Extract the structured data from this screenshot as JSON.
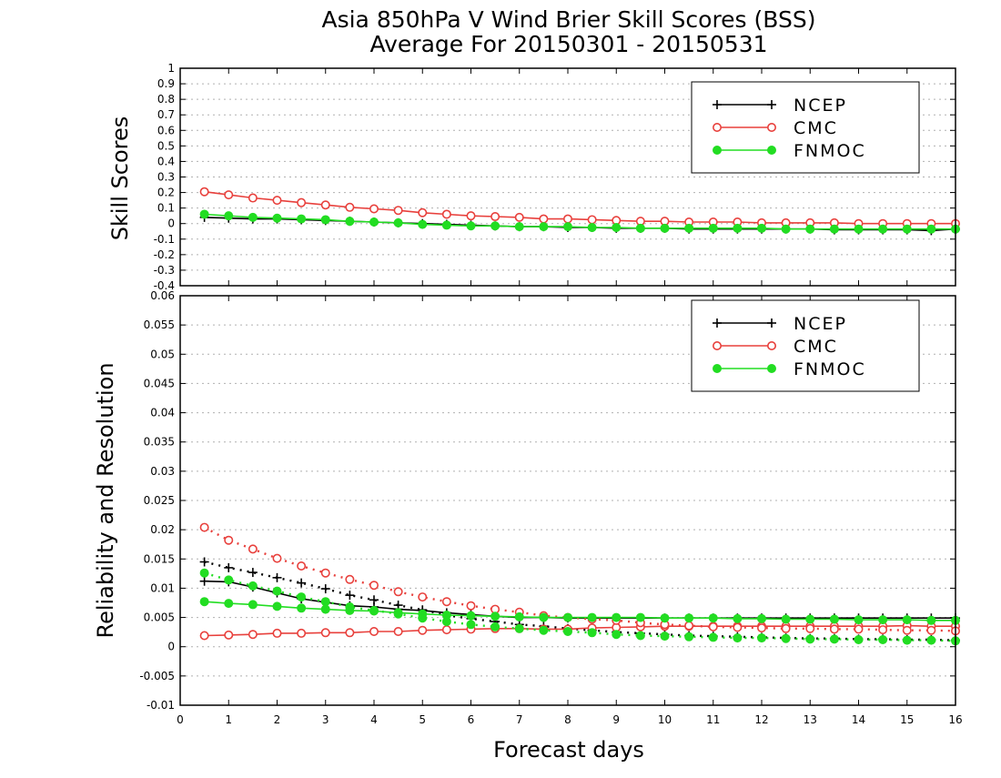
{
  "title": {
    "line1": "Asia 850hPa V Wind Brier Skill Scores (BSS)",
    "line2": "Average For 20150301 - 20150531"
  },
  "colors": {
    "NCEP": "#000000",
    "CMC": "#e8403c",
    "FNMOC": "#22dd22",
    "grid": "#b0b0b0"
  },
  "chart_data": [
    {
      "type": "line",
      "ylabel": "Skill Scores",
      "xlabel": "",
      "xlim": [
        0,
        16
      ],
      "ylim": [
        -0.4,
        1.0
      ],
      "yticks": [
        -0.4,
        -0.3,
        -0.2,
        -0.1,
        0,
        0.1,
        0.2,
        0.3,
        0.4,
        0.5,
        0.6,
        0.7,
        0.8,
        0.9,
        1
      ],
      "ytick_labels": [
        "-0.4",
        "-0.3",
        "-0.2",
        "-0.1",
        "0",
        "0.1",
        "0.2",
        "0.3",
        "0.4",
        "0.5",
        "0.6",
        "0.7",
        "0.8",
        "0.9",
        "1"
      ],
      "grid": true,
      "legend_position": "top-right",
      "x": [
        0.5,
        1,
        1.5,
        2,
        2.5,
        3,
        3.5,
        4,
        4.5,
        5,
        5.5,
        6,
        6.5,
        7,
        7.5,
        8,
        8.5,
        9,
        9.5,
        10,
        10.5,
        11,
        11.5,
        12,
        12.5,
        13,
        13.5,
        14,
        14.5,
        15,
        15.5,
        16
      ],
      "series": [
        {
          "name": "NCEP",
          "style": "plus",
          "values": [
            0.04,
            0.035,
            0.03,
            0.03,
            0.025,
            0.02,
            0.015,
            0.01,
            0.005,
            0.0,
            -0.005,
            -0.01,
            -0.015,
            -0.02,
            -0.02,
            -0.025,
            -0.025,
            -0.03,
            -0.03,
            -0.03,
            -0.035,
            -0.035,
            -0.035,
            -0.035,
            -0.035,
            -0.035,
            -0.04,
            -0.04,
            -0.04,
            -0.04,
            -0.045,
            -0.035
          ]
        },
        {
          "name": "CMC",
          "style": "open-circle",
          "values": [
            0.205,
            0.185,
            0.165,
            0.15,
            0.135,
            0.12,
            0.105,
            0.095,
            0.085,
            0.07,
            0.06,
            0.05,
            0.045,
            0.04,
            0.03,
            0.03,
            0.025,
            0.02,
            0.015,
            0.015,
            0.01,
            0.01,
            0.01,
            0.005,
            0.005,
            0.005,
            0.005,
            0.0,
            0.0,
            0.0,
            0.0,
            0.0
          ]
        },
        {
          "name": "FNMOC",
          "style": "filled-circle",
          "values": [
            0.06,
            0.05,
            0.04,
            0.035,
            0.03,
            0.025,
            0.015,
            0.01,
            0.005,
            -0.005,
            -0.01,
            -0.015,
            -0.015,
            -0.02,
            -0.02,
            -0.02,
            -0.025,
            -0.025,
            -0.03,
            -0.03,
            -0.03,
            -0.03,
            -0.03,
            -0.03,
            -0.035,
            -0.035,
            -0.035,
            -0.035,
            -0.035,
            -0.035,
            -0.035,
            -0.035
          ]
        }
      ],
      "legend": [
        "NCEP",
        "CMC",
        "FNMOC"
      ]
    },
    {
      "type": "line",
      "ylabel": "Reliability and Resolution",
      "xlabel": "Forecast days",
      "xlim": [
        0,
        16
      ],
      "ylim": [
        -0.01,
        0.06
      ],
      "xticks": [
        0,
        1,
        2,
        3,
        4,
        5,
        6,
        7,
        8,
        9,
        10,
        11,
        12,
        13,
        14,
        15,
        16
      ],
      "xtick_labels": [
        "0",
        "1",
        "2",
        "3",
        "4",
        "5",
        "6",
        "7",
        "8",
        "9",
        "10",
        "11",
        "12",
        "13",
        "14",
        "15",
        "16"
      ],
      "yticks": [
        -0.01,
        -0.005,
        0,
        0.005,
        0.01,
        0.015,
        0.02,
        0.025,
        0.03,
        0.035,
        0.04,
        0.045,
        0.05,
        0.055,
        0.06
      ],
      "ytick_labels": [
        "-0.01",
        "-0.005",
        "0",
        "0.005",
        "0.01",
        "0.015",
        "0.02",
        "0.025",
        "0.03",
        "0.035",
        "0.04",
        "0.045",
        "0.05",
        "0.055",
        "0.06"
      ],
      "grid": true,
      "legend_position": "top-right",
      "x": [
        0.5,
        1,
        1.5,
        2,
        2.5,
        3,
        3.5,
        4,
        4.5,
        5,
        5.5,
        6,
        6.5,
        7,
        7.5,
        8,
        8.5,
        9,
        9.5,
        10,
        10.5,
        11,
        11.5,
        12,
        12.5,
        13,
        13.5,
        14,
        14.5,
        15,
        15.5,
        16
      ],
      "series": [
        {
          "name": "NCEP",
          "style": "plus",
          "line": "solid",
          "values": [
            0.0112,
            0.0111,
            0.0102,
            0.0092,
            0.0082,
            0.0076,
            0.007,
            0.0068,
            0.0064,
            0.0062,
            0.0058,
            0.0055,
            0.0052,
            0.005,
            0.005,
            0.0049,
            0.0049,
            0.0049,
            0.0049,
            0.0049,
            0.0049,
            0.0049,
            0.0049,
            0.0049,
            0.0049,
            0.0049,
            0.0049,
            0.0049,
            0.0049,
            0.0049,
            0.0049,
            0.0049
          ]
        },
        {
          "name": "NCEP",
          "style": "plus",
          "line": "dotted",
          "values": [
            0.0145,
            0.0135,
            0.0127,
            0.0118,
            0.0109,
            0.0099,
            0.0088,
            0.008,
            0.0071,
            0.0063,
            0.0054,
            0.0048,
            0.0043,
            0.0038,
            0.0035,
            0.0031,
            0.0028,
            0.0025,
            0.0023,
            0.0021,
            0.0019,
            0.0018,
            0.0017,
            0.0016,
            0.0015,
            0.0014,
            0.0014,
            0.0013,
            0.0013,
            0.0012,
            0.0012,
            0.0011
          ]
        },
        {
          "name": "CMC",
          "style": "open-circle",
          "line": "solid",
          "values": [
            0.0019,
            0.002,
            0.0021,
            0.0023,
            0.0023,
            0.0024,
            0.0024,
            0.0026,
            0.0026,
            0.0028,
            0.0029,
            0.003,
            0.0031,
            0.0031,
            0.003,
            0.003,
            0.0032,
            0.0033,
            0.0034,
            0.0035,
            0.0035,
            0.0035,
            0.0035,
            0.0035,
            0.0035,
            0.0035,
            0.0035,
            0.0035,
            0.0035,
            0.0036,
            0.0035,
            0.0035
          ]
        },
        {
          "name": "CMC",
          "style": "open-circle",
          "line": "dotted",
          "values": [
            0.0204,
            0.0182,
            0.0167,
            0.0151,
            0.0138,
            0.0126,
            0.0115,
            0.0105,
            0.0094,
            0.0085,
            0.0077,
            0.007,
            0.0064,
            0.0059,
            0.0053,
            0.005,
            0.0047,
            0.0045,
            0.0041,
            0.0038,
            0.0036,
            0.0034,
            0.0033,
            0.0032,
            0.0031,
            0.0031,
            0.003,
            0.003,
            0.0029,
            0.0028,
            0.0028,
            0.0027
          ]
        },
        {
          "name": "FNMOC",
          "style": "filled-circle",
          "line": "solid",
          "values": [
            0.0077,
            0.0074,
            0.0072,
            0.0069,
            0.0066,
            0.0064,
            0.0062,
            0.0061,
            0.0058,
            0.0056,
            0.0054,
            0.0053,
            0.0052,
            0.0051,
            0.005,
            0.005,
            0.005,
            0.005,
            0.005,
            0.0049,
            0.0049,
            0.0049,
            0.0048,
            0.0048,
            0.0047,
            0.0047,
            0.0047,
            0.0046,
            0.0046,
            0.0046,
            0.0045,
            0.0045
          ]
        },
        {
          "name": "FNMOC",
          "style": "filled-circle",
          "line": "dotted",
          "values": [
            0.0126,
            0.0114,
            0.0104,
            0.0095,
            0.0085,
            0.0077,
            0.0068,
            0.0062,
            0.0056,
            0.0049,
            0.0043,
            0.0038,
            0.0034,
            0.0031,
            0.0028,
            0.0026,
            0.0024,
            0.0021,
            0.0019,
            0.0018,
            0.0017,
            0.0016,
            0.0015,
            0.0015,
            0.0014,
            0.0013,
            0.0013,
            0.0012,
            0.0012,
            0.0011,
            0.0011,
            0.001
          ]
        }
      ],
      "legend": [
        "NCEP",
        "CMC",
        "FNMOC"
      ]
    }
  ]
}
